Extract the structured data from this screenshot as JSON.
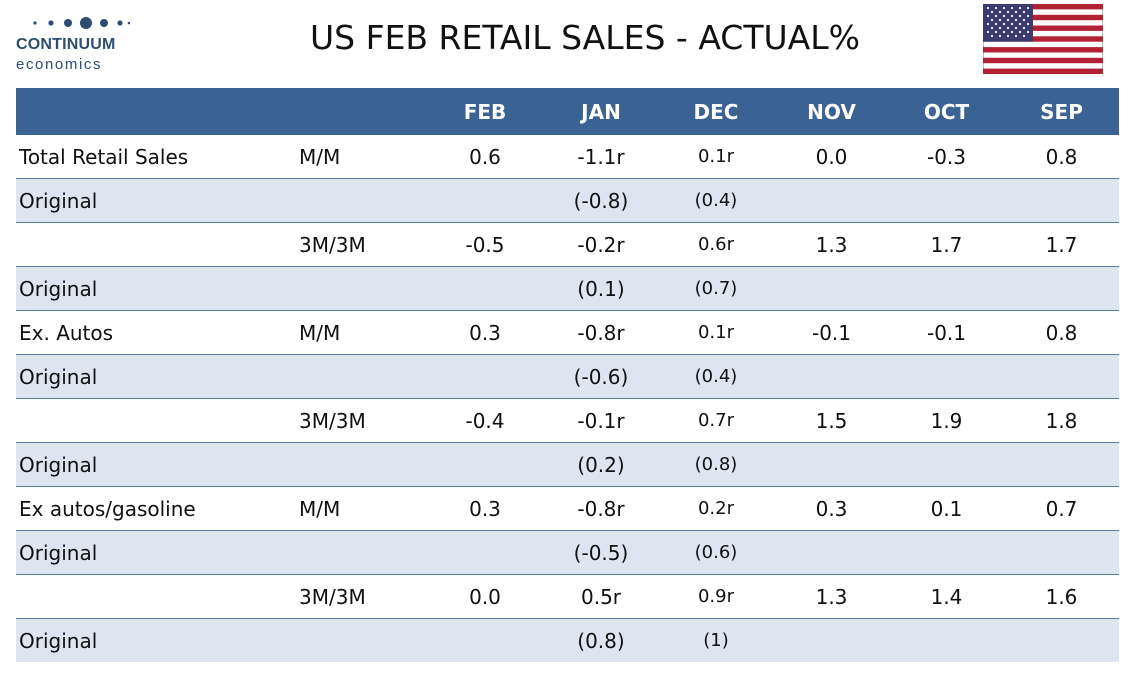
{
  "brand": {
    "name": "CONTINUUM",
    "tagline": "economics"
  },
  "title": "US FEB RETAIL SALES - ACTUAL%",
  "table": {
    "columns": [
      "FEB",
      "JAN",
      "DEC",
      "NOV",
      "OCT",
      "SEP"
    ],
    "rows": [
      {
        "label": "Total Retail Sales",
        "measure": "M/M",
        "feb": "0.6",
        "jan": "-1.1r",
        "dec": "0.1r",
        "nov": "0.0",
        "oct": "-0.3",
        "sep": "0.8"
      },
      {
        "label": "Original",
        "measure": "",
        "feb": "",
        "jan": "(-0.8)",
        "dec": "(0.4)",
        "nov": "",
        "oct": "",
        "sep": ""
      },
      {
        "label": "",
        "measure": "3M/3M",
        "feb": "-0.5",
        "jan": "-0.2r",
        "dec": "0.6r",
        "nov": "1.3",
        "oct": "1.7",
        "sep": "1.7"
      },
      {
        "label": "Original",
        "measure": "",
        "feb": "",
        "jan": "(0.1)",
        "dec": "(0.7)",
        "nov": "",
        "oct": "",
        "sep": ""
      },
      {
        "label": "Ex. Autos",
        "measure": "M/M",
        "feb": "0.3",
        "jan": "-0.8r",
        "dec": "0.1r",
        "nov": "-0.1",
        "oct": "-0.1",
        "sep": "0.8"
      },
      {
        "label": "Original",
        "measure": "",
        "feb": "",
        "jan": "(-0.6)",
        "dec": "(0.4)",
        "nov": "",
        "oct": "",
        "sep": ""
      },
      {
        "label": "",
        "measure": "3M/3M",
        "feb": "-0.4",
        "jan": "-0.1r",
        "dec": "0.7r",
        "nov": "1.5",
        "oct": "1.9",
        "sep": "1.8"
      },
      {
        "label": "Original",
        "measure": "",
        "feb": "",
        "jan": "(0.2)",
        "dec": "(0.8)",
        "nov": "",
        "oct": "",
        "sep": ""
      },
      {
        "label": "Ex autos/gasoline",
        "measure": "M/M",
        "feb": "0.3",
        "jan": "-0.8r",
        "dec": "0.2r",
        "nov": "0.3",
        "oct": "0.1",
        "sep": "0.7"
      },
      {
        "label": "Original",
        "measure": "",
        "feb": "",
        "jan": "(-0.5)",
        "dec": "(0.6)",
        "nov": "",
        "oct": "",
        "sep": ""
      },
      {
        "label": "",
        "measure": "3M/3M",
        "feb": "0.0",
        "jan": "0.5r",
        "dec": "0.9r",
        "nov": "1.3",
        "oct": "1.4",
        "sep": "1.6"
      },
      {
        "label": "Original",
        "measure": "",
        "feb": "",
        "jan": "(0.8)",
        "dec": "(1)",
        "nov": "",
        "oct": "",
        "sep": ""
      }
    ]
  },
  "colors": {
    "header_bg": "#3a6292",
    "stripe_bg": "#dde6f0",
    "brand_blue": "#2d4e72",
    "flag_red": "#b22234",
    "flag_blue": "#3c3b6e"
  },
  "icons": {
    "flag": "us-flag-icon",
    "logo": "continuum-dots-logo"
  }
}
